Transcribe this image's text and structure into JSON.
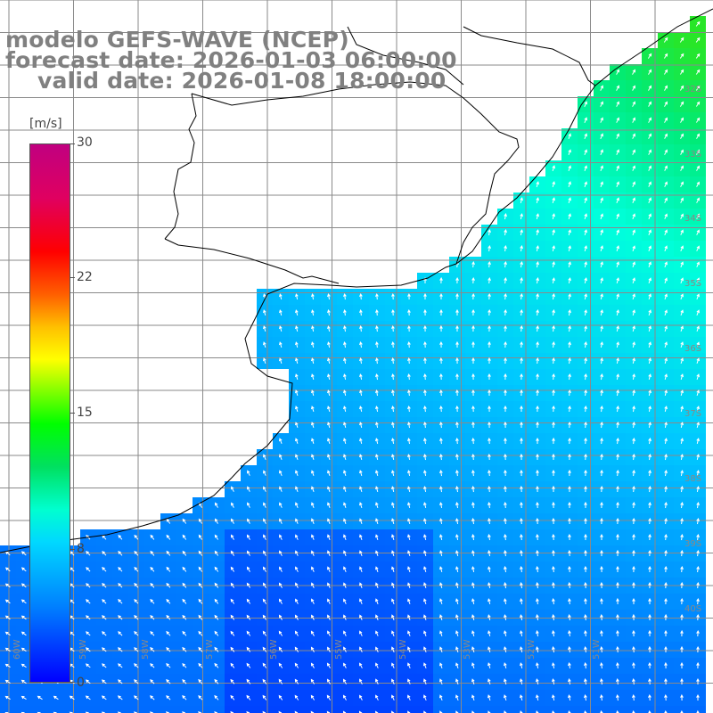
{
  "title": {
    "model": "modelo GEFS-WAVE (NCEP)",
    "forecast": "forecast date: 2026-01-03 06:00:00",
    "valid": "valid date: 2026-01-08 18:00:00"
  },
  "colorbar": {
    "unit": "[m/s]",
    "range": [
      0,
      30
    ],
    "ticks": [
      "30",
      "22",
      "15",
      "8",
      "0"
    ],
    "tick_values": [
      30,
      22,
      15,
      8,
      0
    ],
    "colors": [
      "#0000ff",
      "#0080ff",
      "#00e0ff",
      "#00e060",
      "#00ff00",
      "#ffff00",
      "#ff0000",
      "#c00080"
    ]
  },
  "axes": {
    "lon_labels": [
      "60W",
      "59W",
      "58W",
      "57W",
      "56W",
      "55W",
      "54W",
      "53W",
      "52W",
      "51W"
    ],
    "lat_labels": [
      "32S",
      "33S",
      "34S",
      "35S",
      "36S",
      "37S",
      "38S",
      "39S",
      "40S"
    ]
  },
  "colors": {
    "land": "#ffffff",
    "coast": "#000000",
    "grid": "#808080",
    "arrows": "#ffffff",
    "title": "#808080"
  }
}
